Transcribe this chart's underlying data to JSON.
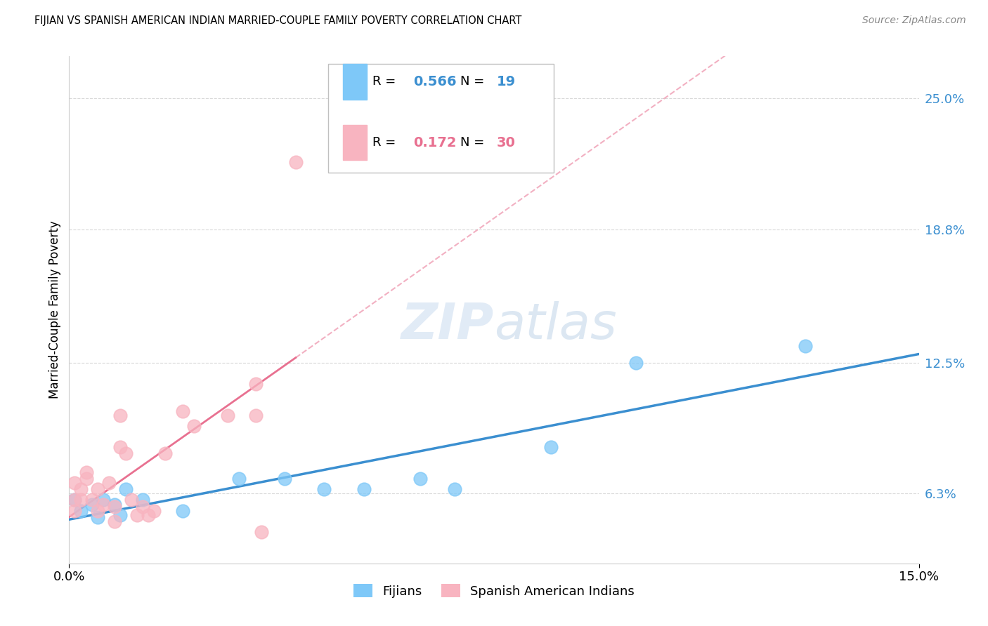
{
  "title": "FIJIAN VS SPANISH AMERICAN INDIAN MARRIED-COUPLE FAMILY POVERTY CORRELATION CHART",
  "source": "Source: ZipAtlas.com",
  "ylabel": "Married-Couple Family Poverty",
  "xlim": [
    0.0,
    0.15
  ],
  "ylim": [
    0.03,
    0.27
  ],
  "ytick_labels_right": [
    "6.3%",
    "12.5%",
    "18.8%",
    "25.0%"
  ],
  "ytick_vals_right": [
    0.063,
    0.125,
    0.188,
    0.25
  ],
  "legend_fijian_R": "0.566",
  "legend_fijian_N": "19",
  "legend_spanish_R": "0.172",
  "legend_spanish_N": "30",
  "fijian_color": "#7EC8F8",
  "spanish_color": "#F8B4C0",
  "fijian_line_color": "#3B8FD0",
  "spanish_line_color": "#E87090",
  "background_color": "#FFFFFF",
  "grid_color": "#D8D8D8",
  "fijian_x": [
    0.001,
    0.002,
    0.004,
    0.005,
    0.006,
    0.008,
    0.009,
    0.01,
    0.013,
    0.02,
    0.03,
    0.038,
    0.045,
    0.052,
    0.062,
    0.068,
    0.085,
    0.1,
    0.13
  ],
  "fijian_y": [
    0.06,
    0.055,
    0.058,
    0.052,
    0.06,
    0.058,
    0.053,
    0.065,
    0.06,
    0.055,
    0.07,
    0.07,
    0.065,
    0.065,
    0.07,
    0.065,
    0.085,
    0.125,
    0.133
  ],
  "spanish_x": [
    0.001,
    0.001,
    0.001,
    0.002,
    0.002,
    0.003,
    0.003,
    0.004,
    0.005,
    0.005,
    0.006,
    0.007,
    0.008,
    0.008,
    0.009,
    0.009,
    0.01,
    0.011,
    0.012,
    0.013,
    0.014,
    0.015,
    0.017,
    0.02,
    0.022,
    0.028,
    0.033,
    0.033,
    0.034,
    0.04
  ],
  "spanish_y": [
    0.055,
    0.06,
    0.068,
    0.06,
    0.065,
    0.07,
    0.073,
    0.06,
    0.055,
    0.065,
    0.058,
    0.068,
    0.05,
    0.057,
    0.085,
    0.1,
    0.082,
    0.06,
    0.053,
    0.057,
    0.053,
    0.055,
    0.082,
    0.102,
    0.095,
    0.1,
    0.115,
    0.1,
    0.045,
    0.22
  ]
}
